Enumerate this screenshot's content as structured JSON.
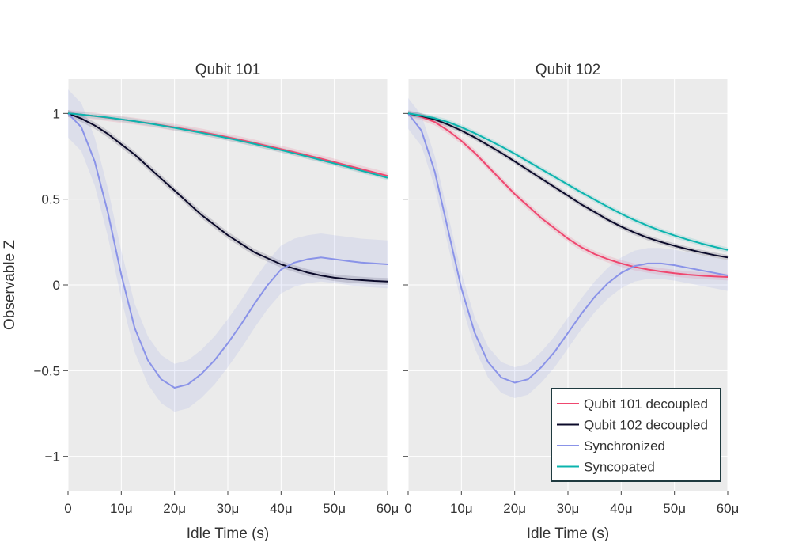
{
  "chart_data": [
    {
      "type": "line",
      "title": "Qubit 101",
      "xlabel": "Idle Time (s)",
      "ylabel": "Observable Z",
      "xlim": [
        0,
        60
      ],
      "ylim": [
        -1.2,
        1.2
      ],
      "x_ticks": [
        0,
        10,
        20,
        30,
        40,
        50,
        60
      ],
      "x_tick_labels": [
        "0",
        "10μ",
        "20μ",
        "30μ",
        "40μ",
        "50μ",
        "60μ"
      ],
      "y_ticks": [
        1,
        0.5,
        0,
        -0.5,
        -1
      ],
      "y_tick_labels": [
        "1",
        "0.5",
        "0",
        "−0.5",
        "−1"
      ],
      "grid": true,
      "x": [
        0,
        2.5,
        5,
        7.5,
        10,
        12.5,
        15,
        17.5,
        20,
        22.5,
        25,
        27.5,
        30,
        32.5,
        35,
        37.5,
        40,
        42.5,
        45,
        47.5,
        50,
        52.5,
        55,
        57.5,
        60
      ],
      "series": [
        {
          "name": "Qubit 101 decoupled",
          "values": [
            1.0,
            0.993,
            0.985,
            0.975,
            0.965,
            0.955,
            0.944,
            0.932,
            0.919,
            0.906,
            0.892,
            0.877,
            0.861,
            0.845,
            0.828,
            0.81,
            0.792,
            0.774,
            0.755,
            0.736,
            0.716,
            0.696,
            0.676,
            0.656,
            0.636
          ],
          "band": 0.02
        },
        {
          "name": "Qubit 102 decoupled",
          "values": [
            1.0,
            0.97,
            0.93,
            0.88,
            0.82,
            0.76,
            0.69,
            0.62,
            0.55,
            0.48,
            0.41,
            0.35,
            0.29,
            0.24,
            0.19,
            0.155,
            0.12,
            0.095,
            0.072,
            0.055,
            0.042,
            0.034,
            0.028,
            0.023,
            0.02
          ],
          "band": 0.02
        },
        {
          "name": "Synchronized",
          "values": [
            1.0,
            0.92,
            0.72,
            0.42,
            0.06,
            -0.25,
            -0.44,
            -0.55,
            -0.6,
            -0.58,
            -0.52,
            -0.44,
            -0.34,
            -0.23,
            -0.11,
            0.0,
            0.09,
            0.13,
            0.15,
            0.16,
            0.15,
            0.14,
            0.13,
            0.125,
            0.12
          ],
          "band": 0.14
        },
        {
          "name": "Syncopated",
          "values": [
            1.0,
            0.993,
            0.985,
            0.976,
            0.966,
            0.955,
            0.943,
            0.93,
            0.916,
            0.902,
            0.887,
            0.872,
            0.856,
            0.839,
            0.822,
            0.804,
            0.786,
            0.767,
            0.748,
            0.728,
            0.708,
            0.688,
            0.667,
            0.646,
            0.625
          ],
          "band": 0.015
        }
      ]
    },
    {
      "type": "line",
      "title": "Qubit 102",
      "xlabel": "Idle Time (s)",
      "ylabel": "",
      "xlim": [
        0,
        60
      ],
      "ylim": [
        -1.2,
        1.2
      ],
      "x_ticks": [
        0,
        10,
        20,
        30,
        40,
        50,
        60
      ],
      "x_tick_labels": [
        "0",
        "10μ",
        "20μ",
        "30μ",
        "40μ",
        "50μ",
        "60μ"
      ],
      "y_ticks": [
        1,
        0.5,
        0,
        -0.5,
        -1
      ],
      "y_tick_labels": [
        "",
        "",
        "",
        "",
        ""
      ],
      "grid": true,
      "x": [
        0,
        2.5,
        5,
        7.5,
        10,
        12.5,
        15,
        17.5,
        20,
        22.5,
        25,
        27.5,
        30,
        32.5,
        35,
        37.5,
        40,
        42.5,
        45,
        47.5,
        50,
        52.5,
        55,
        57.5,
        60
      ],
      "series": [
        {
          "name": "Qubit 101 decoupled",
          "values": [
            1.0,
            0.98,
            0.95,
            0.9,
            0.84,
            0.77,
            0.69,
            0.61,
            0.53,
            0.46,
            0.39,
            0.33,
            0.27,
            0.22,
            0.18,
            0.15,
            0.125,
            0.105,
            0.09,
            0.078,
            0.068,
            0.06,
            0.054,
            0.05,
            0.046
          ],
          "band": 0.02
        },
        {
          "name": "Qubit 102 decoupled",
          "values": [
            1.0,
            0.985,
            0.965,
            0.935,
            0.9,
            0.86,
            0.815,
            0.77,
            0.72,
            0.67,
            0.62,
            0.57,
            0.52,
            0.47,
            0.425,
            0.38,
            0.34,
            0.305,
            0.275,
            0.25,
            0.228,
            0.208,
            0.19,
            0.174,
            0.16
          ],
          "band": 0.015
        },
        {
          "name": "Synchronized",
          "values": [
            1.0,
            0.9,
            0.66,
            0.32,
            -0.02,
            -0.28,
            -0.45,
            -0.54,
            -0.57,
            -0.55,
            -0.48,
            -0.39,
            -0.28,
            -0.17,
            -0.07,
            0.01,
            0.07,
            0.11,
            0.125,
            0.125,
            0.115,
            0.1,
            0.085,
            0.07,
            0.055
          ],
          "band": 0.09
        },
        {
          "name": "Syncopated",
          "values": [
            1.0,
            0.988,
            0.972,
            0.95,
            0.92,
            0.885,
            0.847,
            0.807,
            0.765,
            0.72,
            0.675,
            0.63,
            0.585,
            0.54,
            0.497,
            0.455,
            0.415,
            0.378,
            0.345,
            0.315,
            0.288,
            0.264,
            0.242,
            0.222,
            0.204
          ],
          "band": 0.015
        }
      ]
    }
  ],
  "legend": {
    "position": "bottom-right",
    "entries": [
      {
        "label": "Qubit 101 decoupled",
        "color": "#EF476F"
      },
      {
        "label": "Qubit 102 decoupled",
        "color": "#0B0A2A"
      },
      {
        "label": "Synchronized",
        "color": "#8A93E8"
      },
      {
        "label": "Syncopated",
        "color": "#0BB4AE"
      }
    ]
  },
  "colors": {
    "plot_background": "#EBEBEB",
    "grid": "#FFFFFF",
    "legend_border": "#1F3A3F"
  }
}
